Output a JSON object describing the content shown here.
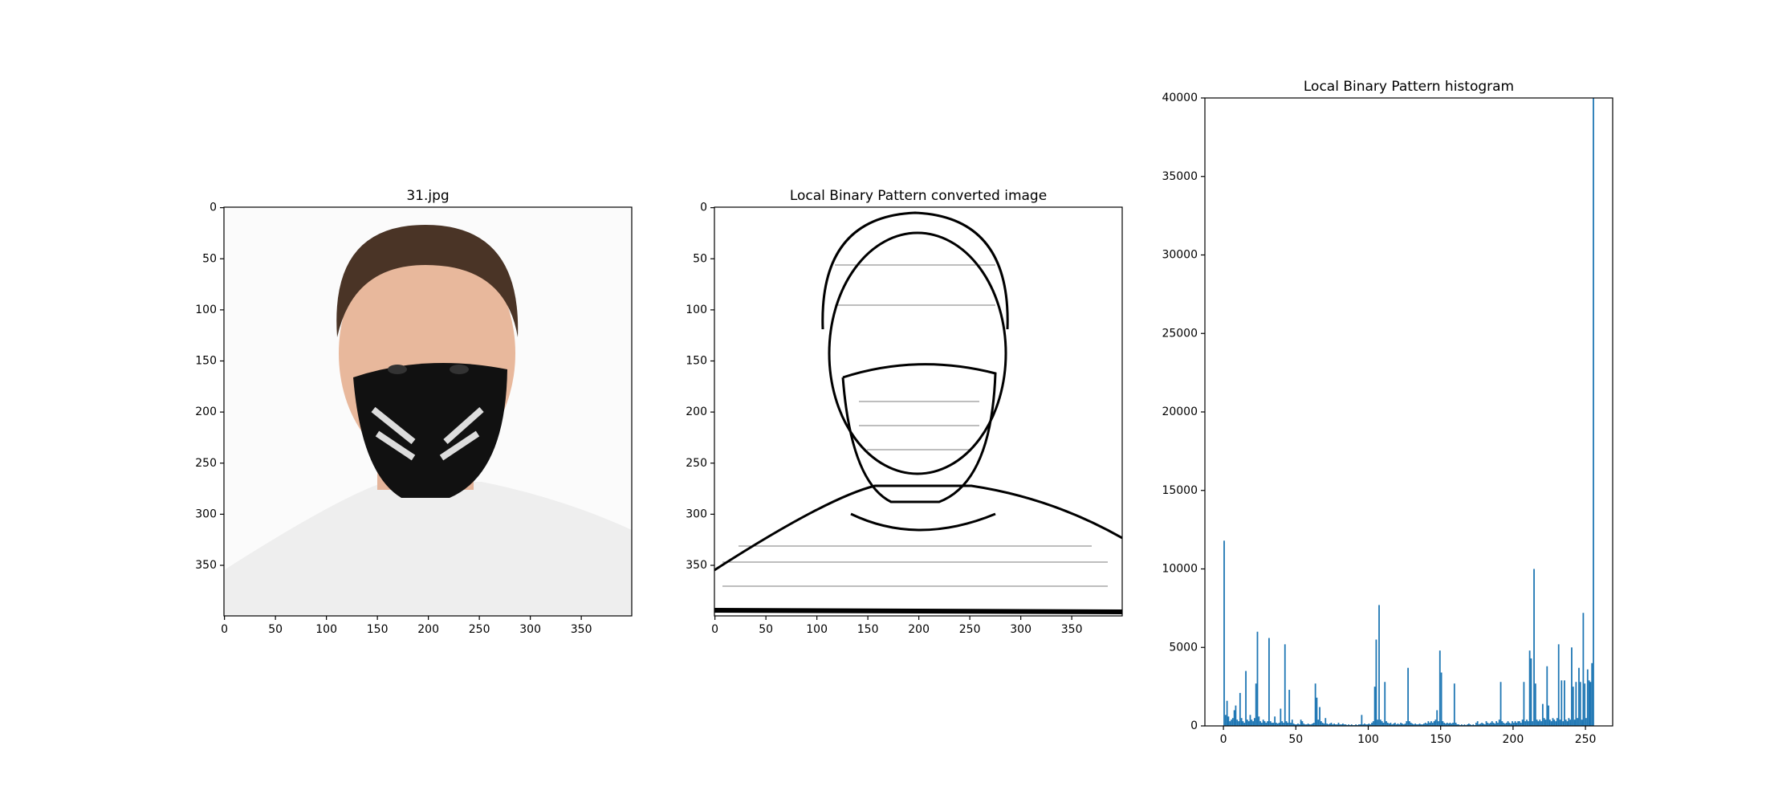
{
  "chart_data": [
    {
      "type": "image",
      "title": "31.jpg",
      "xlim": [
        -0.5,
        399.5
      ],
      "ylim": [
        399.5,
        -0.5
      ],
      "xticks": [
        0,
        50,
        100,
        150,
        200,
        250,
        300,
        350
      ],
      "yticks": [
        0,
        50,
        100,
        150,
        200,
        250,
        300,
        350
      ]
    },
    {
      "type": "image",
      "title": "Local Binary Pattern converted image",
      "xlim": [
        -0.5,
        399.5
      ],
      "ylim": [
        399.5,
        -0.5
      ],
      "xticks": [
        0,
        50,
        100,
        150,
        200,
        250,
        300,
        350
      ],
      "yticks": [
        0,
        50,
        100,
        150,
        200,
        250,
        300,
        350
      ]
    },
    {
      "type": "histogram",
      "title": "Local Binary Pattern histogram",
      "color": "#1f77b4",
      "xlim": [
        -12.8,
        268.8
      ],
      "ylim": [
        0,
        40000
      ],
      "xticks": [
        0,
        50,
        100,
        150,
        200,
        250
      ],
      "yticks": [
        0,
        5000,
        10000,
        15000,
        20000,
        25000,
        30000,
        35000,
        40000
      ],
      "bins": [
        0,
        1,
        2,
        3,
        4,
        5,
        6,
        7,
        8,
        9,
        10,
        11,
        12,
        13,
        14,
        15,
        16,
        17,
        18,
        19,
        20,
        21,
        22,
        23,
        24,
        25,
        26,
        27,
        28,
        29,
        30,
        31,
        32,
        33,
        34,
        35,
        36,
        37,
        38,
        39,
        40,
        41,
        42,
        43,
        44,
        45,
        46,
        47,
        48,
        49,
        50,
        51,
        52,
        53,
        54,
        55,
        56,
        57,
        58,
        59,
        60,
        61,
        62,
        63,
        64,
        65,
        66,
        67,
        68,
        69,
        70,
        71,
        72,
        73,
        74,
        75,
        76,
        77,
        78,
        79,
        80,
        81,
        82,
        83,
        84,
        85,
        86,
        87,
        88,
        89,
        90,
        91,
        92,
        93,
        94,
        95,
        96,
        97,
        98,
        99,
        100,
        101,
        102,
        103,
        104,
        105,
        106,
        107,
        108,
        109,
        110,
        111,
        112,
        113,
        114,
        115,
        116,
        117,
        118,
        119,
        120,
        121,
        122,
        123,
        124,
        125,
        126,
        127,
        128,
        129,
        130,
        131,
        132,
        133,
        134,
        135,
        136,
        137,
        138,
        139,
        140,
        141,
        142,
        143,
        144,
        145,
        146,
        147,
        148,
        149,
        150,
        151,
        152,
        153,
        154,
        155,
        156,
        157,
        158,
        159,
        160,
        161,
        162,
        163,
        164,
        165,
        166,
        167,
        168,
        169,
        170,
        171,
        172,
        173,
        174,
        175,
        176,
        177,
        178,
        179,
        180,
        181,
        182,
        183,
        184,
        185,
        186,
        187,
        188,
        189,
        190,
        191,
        192,
        193,
        194,
        195,
        196,
        197,
        198,
        199,
        200,
        201,
        202,
        203,
        204,
        205,
        206,
        207,
        208,
        209,
        210,
        211,
        212,
        213,
        214,
        215,
        216,
        217,
        218,
        219,
        220,
        221,
        222,
        223,
        224,
        225,
        226,
        227,
        228,
        229,
        230,
        231,
        232,
        233,
        234,
        235,
        236,
        237,
        238,
        239,
        240,
        241,
        242,
        243,
        244,
        245,
        246,
        247,
        248,
        249,
        250,
        251,
        252,
        253,
        254,
        255,
        256
      ],
      "values": [
        11800,
        700,
        1600,
        600,
        300,
        400,
        500,
        1000,
        1300,
        400,
        300,
        2100,
        500,
        300,
        200,
        3500,
        400,
        300,
        700,
        400,
        300,
        500,
        2700,
        6000,
        600,
        300,
        200,
        400,
        300,
        200,
        300,
        5600,
        300,
        200,
        200,
        600,
        200,
        150,
        200,
        1100,
        300,
        200,
        5200,
        300,
        200,
        2300,
        200,
        400,
        150,
        100,
        100,
        150,
        100,
        400,
        300,
        150,
        100,
        100,
        150,
        100,
        100,
        150,
        200,
        2700,
        1800,
        400,
        1200,
        300,
        200,
        150,
        500,
        150,
        100,
        150,
        200,
        100,
        150,
        100,
        100,
        200,
        100,
        100,
        150,
        100,
        100,
        50,
        100,
        50,
        100,
        50,
        50,
        100,
        50,
        100,
        100,
        700,
        100,
        150,
        100,
        100,
        150,
        100,
        200,
        300,
        2500,
        5500,
        400,
        7700,
        400,
        300,
        200,
        2800,
        300,
        200,
        150,
        200,
        100,
        150,
        200,
        100,
        150,
        100,
        200,
        150,
        100,
        150,
        300,
        3700,
        300,
        200,
        150,
        100,
        150,
        100,
        100,
        150,
        100,
        100,
        150,
        200,
        150,
        300,
        200,
        300,
        200,
        300,
        400,
        1000,
        300,
        4800,
        3400,
        300,
        200,
        150,
        200,
        150,
        200,
        150,
        200,
        2700,
        200,
        100,
        100,
        50,
        100,
        50,
        100,
        50,
        100,
        150,
        100,
        50,
        100,
        50,
        200,
        300,
        100,
        150,
        200,
        150,
        100,
        300,
        200,
        150,
        200,
        300,
        200,
        150,
        300,
        200,
        400,
        2800,
        300,
        200,
        150,
        200,
        300,
        200,
        150,
        300,
        200,
        300,
        200,
        300,
        300,
        200,
        400,
        2800,
        300,
        400,
        300,
        4800,
        4300,
        300,
        10000,
        2700,
        400,
        300,
        400,
        300,
        1400,
        500,
        400,
        3800,
        1300,
        400,
        300,
        500,
        400,
        300,
        500,
        5200,
        400,
        2900,
        300,
        2900,
        400,
        300,
        500,
        400,
        5000,
        2500,
        400,
        2800,
        500,
        3700,
        2800,
        400,
        7200,
        2700,
        500,
        3600,
        2900,
        2800,
        4000,
        40000
      ]
    }
  ]
}
